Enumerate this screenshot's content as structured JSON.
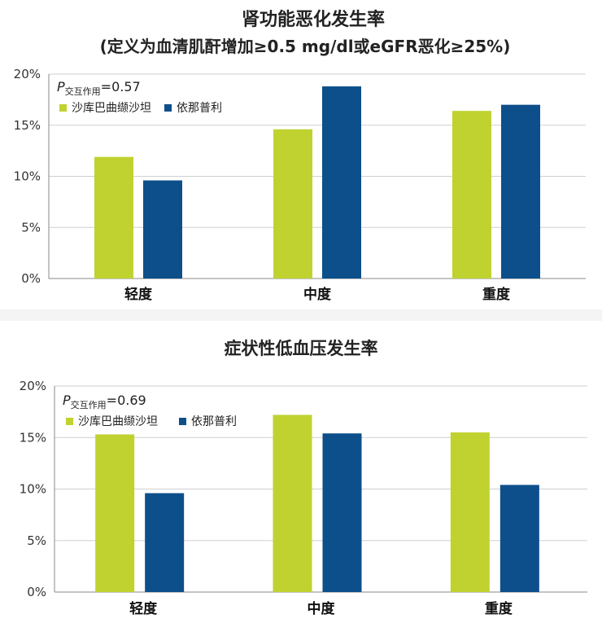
{
  "colors": {
    "series1": "#bfd230",
    "series2": "#0d4f8a",
    "grid": "#cfcfcf",
    "axis": "#888888"
  },
  "chart_data": [
    {
      "type": "bar",
      "title": "肾功能恶化发生率",
      "subtitle": "(定义为血清肌酐增加≥0.5 mg/dl或eGFR恶化≥25%)",
      "annotation": {
        "p_letter": "P",
        "p_subscript": "交互作用",
        "p_value_text": "=0.57"
      },
      "categories": [
        "轻度",
        "中度",
        "重度"
      ],
      "series": [
        {
          "name": "沙库巴曲缬沙坦",
          "values": [
            11.9,
            14.6,
            16.4
          ]
        },
        {
          "name": "依那普利",
          "values": [
            9.6,
            18.8,
            17.0
          ]
        }
      ],
      "ylim": [
        0,
        20
      ],
      "yticks": [
        0,
        5,
        10,
        15,
        20
      ],
      "ytick_labels": [
        "0%",
        "5%",
        "10%",
        "15%",
        "20%"
      ],
      "grid": true,
      "legend_position": "top-left"
    },
    {
      "type": "bar",
      "title": "症状性低血压发生率",
      "subtitle": "",
      "annotation": {
        "p_letter": "P",
        "p_subscript": "交互作用",
        "p_value_text": "=0.69"
      },
      "categories": [
        "轻度",
        "中度",
        "重度"
      ],
      "series": [
        {
          "name": "沙库巴曲缬沙坦",
          "values": [
            15.3,
            17.2,
            15.5
          ]
        },
        {
          "name": "依那普利",
          "values": [
            9.6,
            15.4,
            10.4
          ]
        }
      ],
      "ylim": [
        0,
        20
      ],
      "yticks": [
        0,
        5,
        10,
        15,
        20
      ],
      "ytick_labels": [
        "0%",
        "5%",
        "10%",
        "15%",
        "20%"
      ],
      "grid": true,
      "legend_position": "top-left"
    }
  ]
}
